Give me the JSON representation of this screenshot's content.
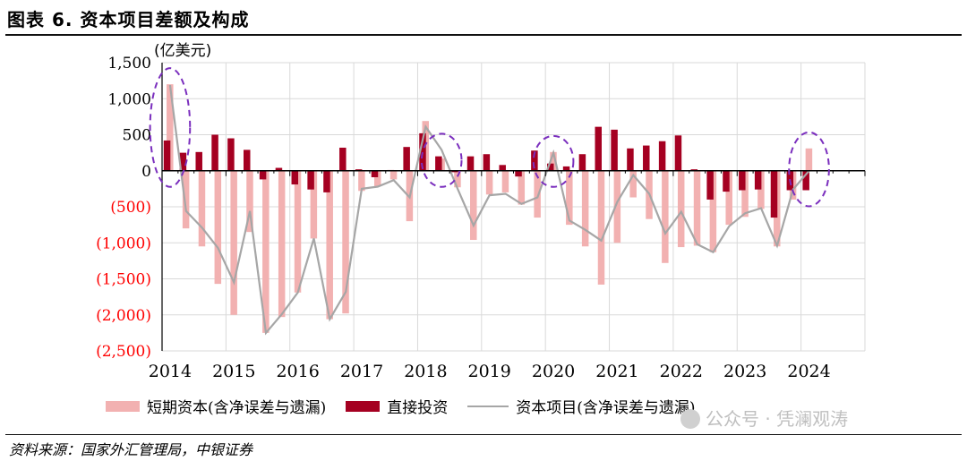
{
  "header": {
    "title": "图表 6. 资本项目差额及构成",
    "source": "资料来源：国家外汇管理局，中银证券",
    "watermark": "公众号 · 凭澜观涛"
  },
  "chart_data": {
    "type": "bar",
    "title": "图表 6. 资本项目差额及构成",
    "unit_label": "(亿美元)",
    "ylim": [
      -2500,
      1500
    ],
    "yticks": [
      1500,
      1000,
      500,
      0,
      -500,
      -1000,
      -1500,
      -2000,
      -2500
    ],
    "ytick_labels": [
      "1,500",
      "1,000",
      "500",
      "0",
      "(500)",
      "(1,000)",
      "(1,500)",
      "(2,000)",
      "(2,500)"
    ],
    "negative_tick_color": "#ff0000",
    "grid": true,
    "legend_position": "bottom",
    "x_labels": [
      "2014",
      "2015",
      "2016",
      "2017",
      "2018",
      "2019",
      "2020",
      "2021",
      "2022",
      "2023",
      "2024"
    ],
    "quarters": [
      "2014Q1",
      "2014Q2",
      "2014Q3",
      "2014Q4",
      "2015Q1",
      "2015Q2",
      "2015Q3",
      "2015Q4",
      "2016Q1",
      "2016Q2",
      "2016Q3",
      "2016Q4",
      "2017Q1",
      "2017Q2",
      "2017Q3",
      "2017Q4",
      "2018Q1",
      "2018Q2",
      "2018Q3",
      "2018Q4",
      "2019Q1",
      "2019Q2",
      "2019Q3",
      "2019Q4",
      "2020Q1",
      "2020Q2",
      "2020Q3",
      "2020Q4",
      "2021Q1",
      "2021Q2",
      "2021Q3",
      "2021Q4",
      "2022Q1",
      "2022Q2",
      "2022Q3",
      "2022Q4",
      "2023Q1",
      "2023Q2",
      "2023Q3",
      "2023Q4",
      "2024Q1"
    ],
    "series": [
      {
        "name": "短期资本(含净误差与遗漏)",
        "type": "bar",
        "color": "#f2b1b1",
        "values": [
          1200,
          -800,
          -1050,
          -1570,
          -2000,
          -850,
          -2250,
          -2030,
          -1690,
          -940,
          -2060,
          -1980,
          -280,
          -220,
          -120,
          -700,
          690,
          170,
          -230,
          -960,
          -330,
          -300,
          -470,
          -650,
          260,
          -750,
          -1050,
          -1580,
          -1000,
          -370,
          -670,
          -1280,
          -1060,
          -1040,
          -1130,
          -750,
          -640,
          -530,
          -1050,
          -400,
          310
        ]
      },
      {
        "name": "直接投资",
        "type": "bar",
        "color": "#a50021",
        "values": [
          420,
          250,
          260,
          500,
          450,
          290,
          -120,
          40,
          -190,
          -260,
          -300,
          320,
          20,
          -90,
          10,
          330,
          520,
          200,
          -20,
          200,
          230,
          80,
          -80,
          280,
          100,
          60,
          230,
          610,
          570,
          310,
          350,
          410,
          490,
          20,
          -400,
          -290,
          -270,
          -260,
          -650,
          -270,
          -270
        ]
      },
      {
        "name": "资本项目(含净误差与遗漏)",
        "type": "line",
        "color": "#a6a6a6",
        "values": [
          1190,
          -560,
          -790,
          -1070,
          -1550,
          -560,
          -2250,
          -1990,
          -1690,
          -940,
          -2060,
          -1680,
          -250,
          -220,
          -130,
          -370,
          610,
          290,
          -250,
          -760,
          -340,
          -320,
          -460,
          -370,
          250,
          -690,
          -820,
          -970,
          -430,
          -60,
          -320,
          -870,
          -570,
          -1020,
          -1130,
          -770,
          -590,
          -520,
          -1040,
          -260,
          0
        ]
      }
    ],
    "highlight_ellipses": [
      {
        "label": "2014Q1"
      },
      {
        "label": "2018Q2"
      },
      {
        "label": "2020Q1"
      },
      {
        "label": "2024Q1"
      }
    ]
  }
}
